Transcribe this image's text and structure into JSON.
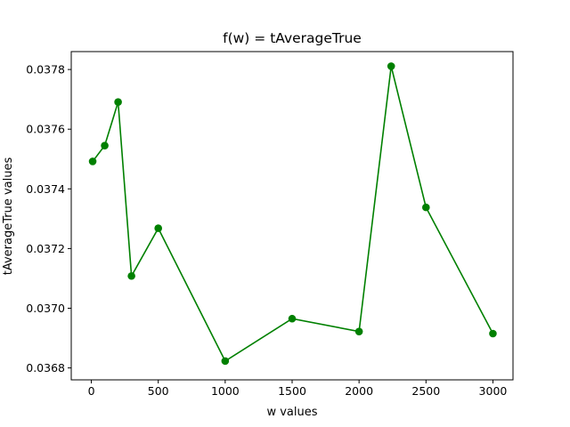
{
  "chart_data": {
    "type": "line",
    "title": "f(w) = tAverageTrue",
    "xlabel": "w values",
    "ylabel": "tAverageTrue values",
    "xlim": [
      -150,
      3150
    ],
    "ylim": [
      0.03676,
      0.03786
    ],
    "xticks": [
      0,
      500,
      1000,
      1500,
      2000,
      2500,
      3000
    ],
    "yticks": [
      0.0368,
      0.037,
      0.0372,
      0.0374,
      0.0376,
      0.0378
    ],
    "ytick_labels": [
      "0.0368",
      "0.0370",
      "0.0372",
      "0.0374",
      "0.0376",
      "0.0378"
    ],
    "grid": false,
    "series": [
      {
        "color": "#008000",
        "marker": "circle",
        "x": [
          10,
          100,
          200,
          300,
          500,
          1000,
          1500,
          2000,
          2240,
          2500,
          3000
        ],
        "y": [
          0.037492,
          0.037545,
          0.037691,
          0.037108,
          0.037268,
          0.036823,
          0.036965,
          0.036922,
          0.037811,
          0.037338,
          0.036915
        ]
      }
    ]
  }
}
